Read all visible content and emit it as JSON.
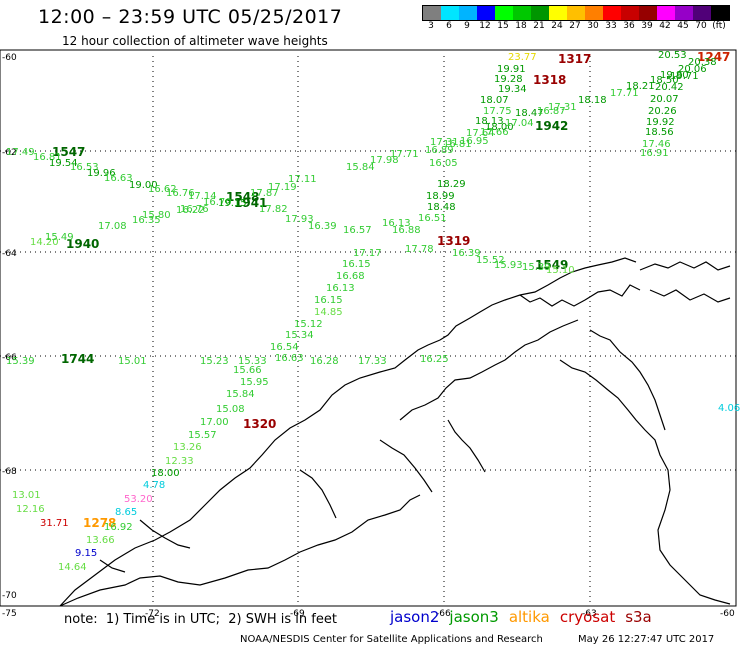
{
  "title": "12:00 – 23:59 UTC 05/25/2017",
  "subtitle": "12 hour collection of altimeter wave heights",
  "colorbar": {
    "colors": [
      "#7f7f7f",
      "#00e5ff",
      "#00b4ff",
      "#0000ff",
      "#00ff00",
      "#00c800",
      "#009600",
      "#ffff00",
      "#ffbf00",
      "#ff7f00",
      "#ff0000",
      "#c80000",
      "#960000",
      "#ff00ff",
      "#9600c8",
      "#500078",
      "#000000"
    ],
    "labels": [
      "3",
      "6",
      "9",
      "12",
      "15",
      "18",
      "21",
      "24",
      "27",
      "30",
      "33",
      "36",
      "39",
      "42",
      "45",
      "70",
      "(ft)"
    ]
  },
  "axes": {
    "lat_labels": [
      "-60",
      "-62",
      "-64",
      "-66",
      "-68",
      "-70"
    ],
    "lon_labels": [
      "-75",
      "-72",
      "-69",
      "-66",
      "-63",
      "-60"
    ]
  },
  "note": "note:  1) Time is in UTC;  2) SWH is in feet",
  "legend": [
    {
      "name": "jason2",
      "color": "#0000cc"
    },
    {
      "name": "jason3",
      "color": "#009900"
    },
    {
      "name": "altika",
      "color": "#ff9900"
    },
    {
      "name": "cryosat",
      "color": "#cc0000"
    },
    {
      "name": "s3a",
      "color": "#990000"
    }
  ],
  "credit": "NOAA/NESDIS Center for Satellite Applications and Research",
  "timestamp": "May 26 12:27:47 UTC 2017",
  "colors": {
    "c13": "#00cc00",
    "c15": "#33cc33",
    "c18": "#00aa00",
    "c20": "#009900",
    "c17": "#22bb22",
    "c_yellow": "#e5d800",
    "c_orange": "#ff9900",
    "c_red": "#cc0000",
    "c_darkred": "#990000",
    "c_cyan": "#00ccdd",
    "c_blue": "#0000cc",
    "c_pink": "#ff66cc",
    "c_lgreen": "#66dd44"
  },
  "track_times": [
    "1547",
    "1548",
    "1941",
    "1940",
    "1942",
    "1317",
    "1318",
    "1319",
    "1320",
    "1247",
    "1549",
    "1744",
    "1278"
  ],
  "observations": [
    {
      "v": "17.49",
      "c": "c15"
    },
    {
      "v": "16.81",
      "c": "c15"
    },
    {
      "v": "19.54",
      "c": "c20"
    },
    {
      "v": "16.53",
      "c": "c15"
    },
    {
      "v": "19.96",
      "c": "c20"
    },
    {
      "v": "16.63",
      "c": "c15"
    },
    {
      "v": "19.00",
      "c": "c20"
    },
    {
      "v": "16.62",
      "c": "c15"
    },
    {
      "v": "16.76",
      "c": "c15"
    },
    {
      "v": "17.14",
      "c": "c15"
    },
    {
      "v": "16.70",
      "c": "c15"
    },
    {
      "v": "19.15",
      "c": "c20"
    },
    {
      "v": "17.87",
      "c": "c15"
    },
    {
      "v": "17.19",
      "c": "c15"
    },
    {
      "v": "16.22",
      "c": "c15"
    },
    {
      "v": "17.11",
      "c": "c15"
    },
    {
      "v": "15.84",
      "c": "c15"
    },
    {
      "v": "17.98",
      "c": "c15"
    },
    {
      "v": "17.71",
      "c": "c15"
    },
    {
      "v": "16.89",
      "c": "c15"
    },
    {
      "v": "16.81",
      "c": "c15"
    },
    {
      "v": "16.95",
      "c": "c15"
    },
    {
      "v": "17.66",
      "c": "c15"
    },
    {
      "v": "18.00",
      "c": "c20"
    },
    {
      "v": "17.04",
      "c": "c15"
    },
    {
      "v": "18.47",
      "c": "c20"
    },
    {
      "v": "16.87",
      "c": "c15"
    },
    {
      "v": "17.31",
      "c": "c15"
    },
    {
      "v": "18.18",
      "c": "c20"
    },
    {
      "v": "17.71",
      "c": "c15"
    },
    {
      "v": "18.21",
      "c": "c20"
    },
    {
      "v": "18.50",
      "c": "c20"
    },
    {
      "v": "19.71",
      "c": "c20"
    },
    {
      "v": "20.53",
      "c": "c20"
    },
    {
      "v": "20.38",
      "c": "c20"
    },
    {
      "v": "20.06",
      "c": "c20"
    },
    {
      "v": "19.80",
      "c": "c20"
    },
    {
      "v": "20.42",
      "c": "c20"
    },
    {
      "v": "20.07",
      "c": "c20"
    },
    {
      "v": "20.26",
      "c": "c20"
    },
    {
      "v": "19.92",
      "c": "c20"
    },
    {
      "v": "18.56",
      "c": "c20"
    },
    {
      "v": "17.46",
      "c": "c15"
    },
    {
      "v": "16.91",
      "c": "c15"
    },
    {
      "v": "23.77",
      "c": "c_yellow"
    },
    {
      "v": "19.91",
      "c": "c20"
    },
    {
      "v": "19.28",
      "c": "c20"
    },
    {
      "v": "19.34",
      "c": "c20"
    },
    {
      "v": "18.07",
      "c": "c20"
    },
    {
      "v": "17.75",
      "c": "c15"
    },
    {
      "v": "18.13",
      "c": "c20"
    },
    {
      "v": "17.64",
      "c": "c15"
    },
    {
      "v": "17.31",
      "c": "c15"
    },
    {
      "v": "16.05",
      "c": "c15"
    },
    {
      "v": "18.29",
      "c": "c20"
    },
    {
      "v": "18.99",
      "c": "c20"
    },
    {
      "v": "18.48",
      "c": "c20"
    },
    {
      "v": "16.51",
      "c": "c15"
    },
    {
      "v": "16.88",
      "c": "c15"
    },
    {
      "v": "16.13",
      "c": "c15"
    },
    {
      "v": "17.17",
      "c": "c15"
    },
    {
      "v": "16.15",
      "c": "c15"
    },
    {
      "v": "16.68",
      "c": "c15"
    },
    {
      "v": "16.13",
      "c": "c15"
    },
    {
      "v": "16.15",
      "c": "c15"
    },
    {
      "v": "14.85",
      "c": "c_lgreen"
    },
    {
      "v": "15.12",
      "c": "c15"
    },
    {
      "v": "15.34",
      "c": "c15"
    },
    {
      "v": "16.54",
      "c": "c15"
    },
    {
      "v": "16.63",
      "c": "c15"
    },
    {
      "v": "15.66",
      "c": "c15"
    },
    {
      "v": "15.95",
      "c": "c15"
    },
    {
      "v": "15.84",
      "c": "c15"
    },
    {
      "v": "15.08",
      "c": "c15"
    },
    {
      "v": "17.00",
      "c": "c15"
    },
    {
      "v": "15.57",
      "c": "c15"
    },
    {
      "v": "13.26",
      "c": "c_lgreen"
    },
    {
      "v": "12.33",
      "c": "c_lgreen"
    },
    {
      "v": "18.00",
      "c": "c20"
    },
    {
      "v": "4.78",
      "c": "c_cyan"
    },
    {
      "v": "53.20",
      "c": "c_pink"
    },
    {
      "v": "8.65",
      "c": "c_cyan"
    },
    {
      "v": "16.92",
      "c": "c15"
    },
    {
      "v": "13.66",
      "c": "c_lgreen"
    },
    {
      "v": "9.15",
      "c": "c_blue"
    },
    {
      "v": "14.64",
      "c": "c_lgreen"
    },
    {
      "v": "13.01",
      "c": "c_lgreen"
    },
    {
      "v": "12.16",
      "c": "c_lgreen"
    },
    {
      "v": "31.71",
      "c": "c_red"
    },
    {
      "v": "15.39",
      "c": "c15"
    },
    {
      "v": "15.01",
      "c": "c15"
    },
    {
      "v": "15.23",
      "c": "c15"
    },
    {
      "v": "15.33",
      "c": "c15"
    },
    {
      "v": "16.28",
      "c": "c15"
    },
    {
      "v": "17.33",
      "c": "c15"
    },
    {
      "v": "16.25",
      "c": "c15"
    },
    {
      "v": "14.20",
      "c": "c_lgreen"
    },
    {
      "v": "15.49",
      "c": "c15"
    },
    {
      "v": "17.08",
      "c": "c15"
    },
    {
      "v": "16.35",
      "c": "c15"
    },
    {
      "v": "15.80",
      "c": "c15"
    },
    {
      "v": "16.76",
      "c": "c15"
    },
    {
      "v": "17.82",
      "c": "c15"
    },
    {
      "v": "17.93",
      "c": "c15"
    },
    {
      "v": "16.39",
      "c": "c15"
    },
    {
      "v": "16.57",
      "c": "c15"
    },
    {
      "v": "17.78",
      "c": "c15"
    },
    {
      "v": "16.39",
      "c": "c15"
    },
    {
      "v": "15.52",
      "c": "c15"
    },
    {
      "v": "15.93",
      "c": "c15"
    },
    {
      "v": "15.39",
      "c": "c15"
    },
    {
      "v": "15.10",
      "c": "c_lgreen"
    },
    {
      "v": "4.06",
      "c": "c_cyan"
    }
  ]
}
